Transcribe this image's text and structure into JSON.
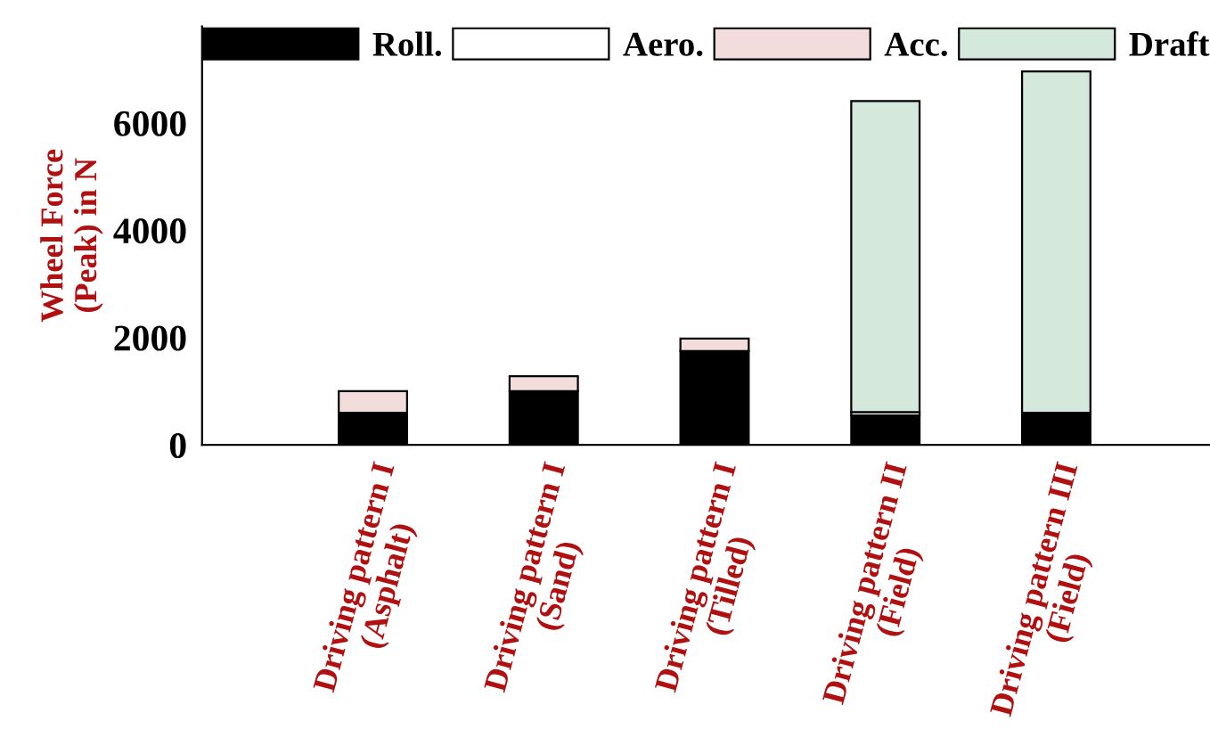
{
  "chart_data": {
    "type": "bar",
    "stacked": true,
    "ylabel": "Wheel Force\n(Peak) in N",
    "categories": [
      "Driving pattern I\n(Asphalt)",
      "Driving pattern I\n(Sand)",
      "Driving pattern I\n(Tilled)",
      "Driving pattern II\n(Field)",
      "Driving pattern III\n(Field)"
    ],
    "series": [
      {
        "name": "Roll.",
        "color": "#000000",
        "values": [
          600,
          1000,
          1750,
          550,
          600
        ]
      },
      {
        "name": "Aero.",
        "color": "#ffffff",
        "values": [
          null,
          null,
          null,
          60,
          null
        ]
      },
      {
        "name": "Acc.",
        "color": "#f2dcdc",
        "values": [
          400,
          280,
          230,
          null,
          null
        ]
      },
      {
        "name": "Draft",
        "color": "#d5e8dc",
        "values": [
          null,
          null,
          null,
          5800,
          6360
        ]
      }
    ],
    "ylim": [
      0,
      7800
    ],
    "yticks": [
      0,
      2000,
      4000,
      6000
    ],
    "grid": false,
    "legend": "top"
  }
}
